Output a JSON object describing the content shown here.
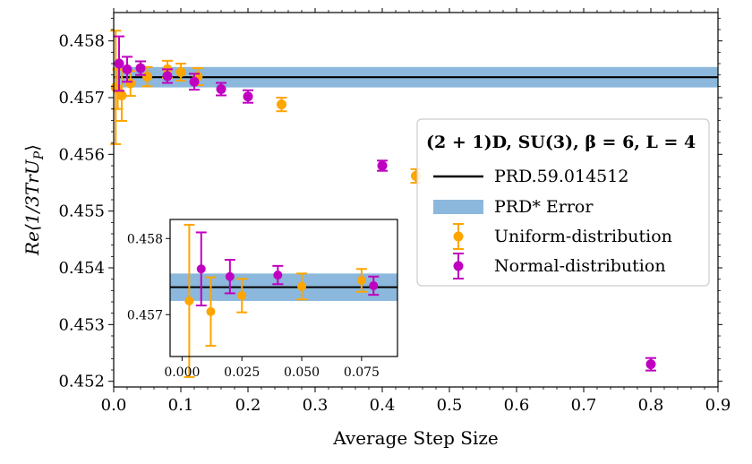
{
  "chart_data": [
    {
      "type": "scatter",
      "panel": "main",
      "xlabel": "Average Step Size",
      "ylabel": "Re⟨⅓TrU_P⟩",
      "ylabel_parts": {
        "prefix": "Re",
        "lang": "⟨",
        "frac": "1/3",
        "body": "TrU",
        "sub": "P",
        "rang": "⟩"
      },
      "xlim": [
        0,
        0.9
      ],
      "ylim": [
        0.4519,
        0.4585
      ],
      "xticks": [
        0.0,
        0.1,
        0.2,
        0.3,
        0.4,
        0.5,
        0.6,
        0.7,
        0.8,
        0.9
      ],
      "xtick_labels": [
        "0.0",
        "0.1",
        "0.2",
        "0.3",
        "0.4",
        "0.5",
        "0.6",
        "0.7",
        "0.8",
        "0.9"
      ],
      "yticks": [
        0.452,
        0.453,
        0.454,
        0.455,
        0.456,
        0.457,
        0.458
      ],
      "ytick_labels": [
        "0.452",
        "0.453",
        "0.454",
        "0.455",
        "0.456",
        "0.457",
        "0.458"
      ],
      "reference": {
        "name": "PRD.59.014512",
        "value": 0.45736,
        "error": 0.00018,
        "color": "#000000",
        "band_color": "#8bb8dc"
      },
      "series": [
        {
          "name": "Uniform-distribution",
          "color": "#ffa500",
          "points": [
            {
              "x": 0.003,
              "y": 0.45718,
              "err": 0.001
            },
            {
              "x": 0.006,
              "y": 0.45715,
              "err": 0.00035
            },
            {
              "x": 0.012,
              "y": 0.45704,
              "err": 0.00045
            },
            {
              "x": 0.025,
              "y": 0.45725,
              "err": 0.00022
            },
            {
              "x": 0.05,
              "y": 0.45737,
              "err": 0.00017
            },
            {
              "x": 0.08,
              "y": 0.4575,
              "err": 0.00015
            },
            {
              "x": 0.1,
              "y": 0.45745,
              "err": 0.00015
            },
            {
              "x": 0.125,
              "y": 0.45737,
              "err": 0.00015
            },
            {
              "x": 0.25,
              "y": 0.45688,
              "err": 0.00012
            },
            {
              "x": 0.45,
              "y": 0.45562,
              "err": 0.00012
            }
          ]
        },
        {
          "name": "Normal-distribution",
          "color": "#c000c0",
          "points": [
            {
              "x": 0.008,
              "y": 0.4576,
              "err": 0.00048
            },
            {
              "x": 0.02,
              "y": 0.4575,
              "err": 0.00022
            },
            {
              "x": 0.04,
              "y": 0.45752,
              "err": 0.00012
            },
            {
              "x": 0.08,
              "y": 0.45738,
              "err": 0.00012
            },
            {
              "x": 0.12,
              "y": 0.45728,
              "err": 0.00014
            },
            {
              "x": 0.16,
              "y": 0.45715,
              "err": 0.00011
            },
            {
              "x": 0.2,
              "y": 0.45702,
              "err": 0.00011
            },
            {
              "x": 0.4,
              "y": 0.4558,
              "err": 9e-05
            },
            {
              "x": 0.8,
              "y": 0.4523,
              "err": 0.00011
            }
          ]
        }
      ],
      "legend": {
        "placement": "center-right",
        "title": "(2 + 1)D, SU(3), β = 6, L = 4",
        "entries": [
          "PRD.59.014512",
          "PRD* Error",
          "Uniform-distribution",
          "Normal-distribution"
        ]
      }
    },
    {
      "type": "scatter",
      "panel": "inset",
      "xlim": [
        -0.005,
        0.09
      ],
      "ylim": [
        0.45645,
        0.45825
      ],
      "xticks": [
        0.0,
        0.025,
        0.05,
        0.075
      ],
      "xtick_labels": [
        "0.000",
        "0.025",
        "0.050",
        "0.075"
      ],
      "yticks": [
        0.457,
        0.458
      ],
      "ytick_labels": [
        "0.457",
        "0.458"
      ],
      "uniform_points": [
        {
          "x": 0.003,
          "y": 0.45718,
          "err": 0.001
        },
        {
          "x": 0.012,
          "y": 0.45704,
          "err": 0.00045
        },
        {
          "x": 0.025,
          "y": 0.45725,
          "err": 0.00022
        },
        {
          "x": 0.05,
          "y": 0.45737,
          "err": 0.00017
        },
        {
          "x": 0.075,
          "y": 0.45745,
          "err": 0.00015
        }
      ],
      "normal_points": [
        {
          "x": 0.008,
          "y": 0.4576,
          "err": 0.00048
        },
        {
          "x": 0.02,
          "y": 0.4575,
          "err": 0.00022
        },
        {
          "x": 0.04,
          "y": 0.45752,
          "err": 0.00012
        },
        {
          "x": 0.08,
          "y": 0.45738,
          "err": 0.00012
        }
      ]
    }
  ]
}
